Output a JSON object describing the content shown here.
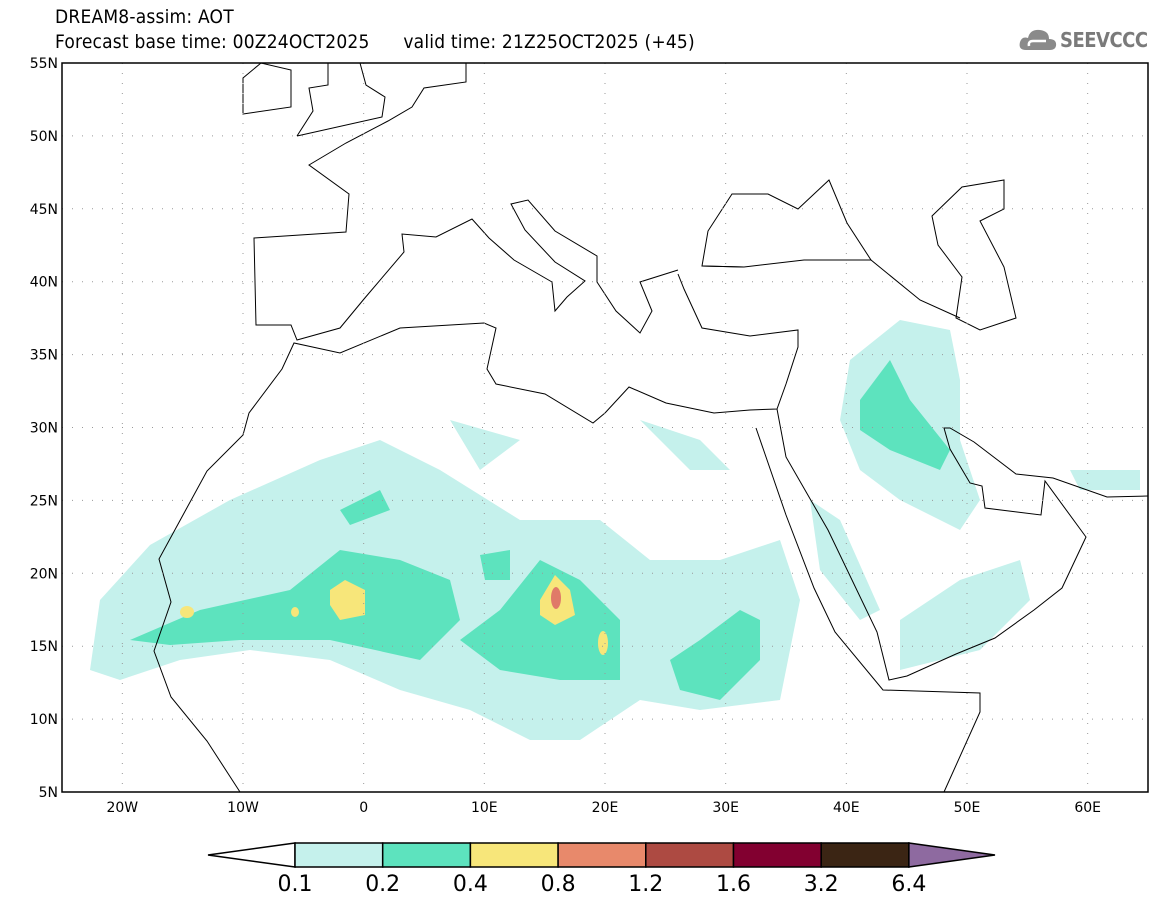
{
  "header": {
    "title": "DREAM8-assim: AOT",
    "base_time": "Forecast base time: 00Z24OCT2025",
    "valid_time": "valid time: 21Z25OCT2025 (+45)"
  },
  "logo": {
    "text": "SEEVCCC",
    "icon": "cloud-icon"
  },
  "map": {
    "lat_labels": [
      "55N",
      "50N",
      "45N",
      "40N",
      "35N",
      "30N",
      "25N",
      "20N",
      "15N",
      "10N",
      "5N"
    ],
    "lon_labels": [
      "20W",
      "10W",
      "0",
      "10E",
      "20E",
      "30E",
      "40E",
      "50E",
      "60E"
    ]
  },
  "colorbar": {
    "labels": [
      "0.1",
      "0.2",
      "0.4",
      "0.8",
      "1.2",
      "1.6",
      "3.2",
      "6.4"
    ],
    "colors": [
      "#ffffff",
      "#c5f1ec",
      "#5de3be",
      "#f7e67a",
      "#e8896b",
      "#ad4a42",
      "#820030",
      "#3b2514",
      "#8e6aa0"
    ]
  }
}
